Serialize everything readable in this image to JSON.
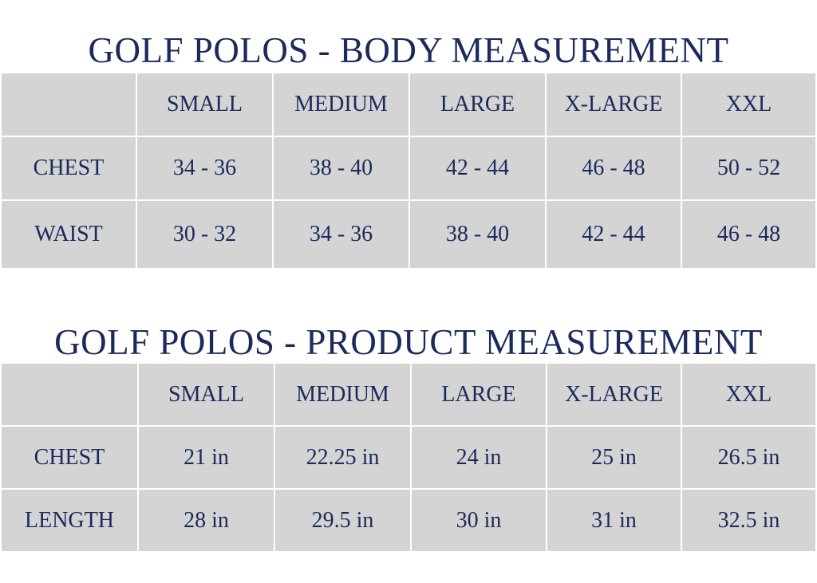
{
  "body_measurement": {
    "title": "GOLF POLOS - BODY MEASUREMENT",
    "sizes": [
      "SMALL",
      "MEDIUM",
      "LARGE",
      "X-LARGE",
      "XXL"
    ],
    "rows": [
      [
        "CHEST",
        "34 - 36",
        "38 - 40",
        "42 - 44",
        "46 - 48",
        "50 - 52"
      ],
      [
        "WAIST",
        "30 - 32",
        "34 - 36",
        "38 - 40",
        "42 - 44",
        "46 - 48"
      ]
    ]
  },
  "product_measurement": {
    "title": "GOLF POLOS - PRODUCT MEASUREMENT",
    "sizes": [
      "SMALL",
      "MEDIUM",
      "LARGE",
      "X-LARGE",
      "XXL"
    ],
    "rows": [
      [
        "CHEST",
        "21 in",
        "22.25 in",
        "24 in",
        "25 in",
        "26.5 in"
      ],
      [
        "LENGTH",
        "28 in",
        "29.5 in",
        "30 in",
        "31 in",
        "32.5 in"
      ]
    ]
  }
}
